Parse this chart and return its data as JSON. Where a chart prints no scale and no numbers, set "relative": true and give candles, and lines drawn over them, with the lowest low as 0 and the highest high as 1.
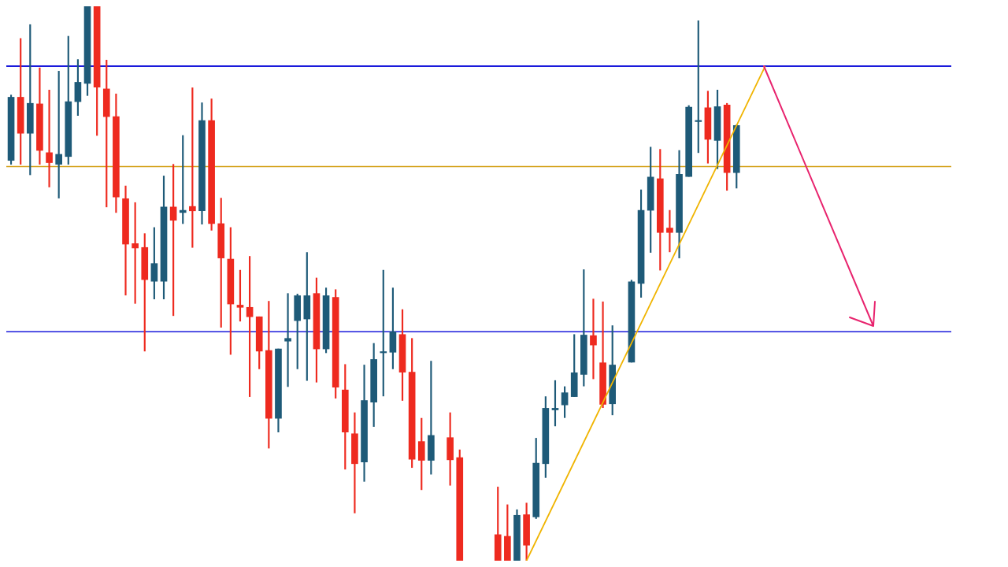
{
  "chart_data": {
    "type": "candlestick",
    "relative": true,
    "categories": [
      null,
      null,
      null,
      null,
      null,
      null,
      null,
      null,
      null,
      null,
      null,
      null,
      null,
      null,
      null,
      null,
      null,
      null,
      null,
      null,
      null,
      null,
      null,
      null,
      null,
      null,
      null,
      null,
      null,
      null,
      null,
      null,
      null,
      null,
      null,
      null,
      null,
      null,
      null,
      null,
      null,
      null,
      null,
      null,
      null,
      null,
      null,
      null,
      null,
      null,
      null,
      null,
      null,
      null,
      null,
      null,
      null,
      null,
      null,
      null,
      null,
      null,
      null,
      null,
      null,
      null,
      null,
      null,
      null,
      null,
      null,
      null,
      null,
      null,
      null,
      null,
      null,
      null,
      null,
      null,
      null,
      null,
      null,
      null,
      null,
      null,
      null,
      null,
      null,
      null,
      null,
      null,
      null,
      null,
      null,
      null,
      null,
      null,
      null
    ],
    "ohlc": [
      [
        0.722,
        0.84,
        0.715,
        0.836
      ],
      [
        0.836,
        0.942,
        0.715,
        0.771
      ],
      [
        0.771,
        0.967,
        0.696,
        0.825
      ],
      [
        0.824,
        0.889,
        0.715,
        0.74
      ],
      [
        0.736,
        0.849,
        0.674,
        0.718
      ],
      [
        0.715,
        0.883,
        0.654,
        0.733
      ],
      [
        0.729,
        0.946,
        0.715,
        0.828
      ],
      [
        0.828,
        0.904,
        0.803,
        0.863
      ],
      [
        0.861,
        1,
        0.839,
        1
      ],
      [
        1,
        1,
        0.767,
        0.854
      ],
      [
        0.851,
        0.903,
        0.638,
        0.801
      ],
      [
        0.801,
        0.842,
        0.628,
        0.656
      ],
      [
        0.653,
        0.676,
        0.479,
        0.571
      ],
      [
        0.572,
        0.646,
        0.464,
        0.564
      ],
      [
        0.565,
        0.59,
        0.378,
        0.507
      ],
      [
        0.504,
        0.601,
        0.472,
        0.536
      ],
      [
        0.504,
        0.694,
        0.472,
        0.638
      ],
      [
        0.638,
        0.715,
        0.442,
        0.614
      ],
      [
        0.628,
        0.767,
        0.608,
        0.632
      ],
      [
        0.639,
        0.853,
        0.565,
        0.631
      ],
      [
        0.631,
        0.826,
        0.607,
        0.794
      ],
      [
        0.794,
        0.833,
        0.596,
        0.608
      ],
      [
        0.608,
        0.654,
        0.421,
        0.546
      ],
      [
        0.544,
        0.601,
        0.372,
        0.463
      ],
      [
        0.461,
        0.524,
        0.432,
        0.457
      ],
      [
        0.457,
        0.549,
        0.296,
        0.44
      ],
      [
        0.44,
        0.44,
        0.346,
        0.378
      ],
      [
        0.379,
        0.468,
        0.203,
        0.257
      ],
      [
        0.257,
        0.382,
        0.232,
        0.382
      ],
      [
        0.396,
        0.482,
        0.314,
        0.401
      ],
      [
        0.433,
        0.481,
        0.346,
        0.478
      ],
      [
        0.436,
        0.556,
        0.325,
        0.478
      ],
      [
        0.482,
        0.51,
        0.322,
        0.382
      ],
      [
        0.382,
        0.492,
        0.375,
        0.478
      ],
      [
        0.475,
        0.489,
        0.293,
        0.313
      ],
      [
        0.308,
        0.354,
        0.165,
        0.232
      ],
      [
        0.229,
        0.267,
        0.086,
        0.175
      ],
      [
        0.178,
        0.353,
        0.143,
        0.289
      ],
      [
        0.286,
        0.392,
        0.242,
        0.363
      ],
      [
        0.375,
        0.524,
        0.297,
        0.376
      ],
      [
        0.376,
        0.492,
        0.346,
        0.413
      ],
      [
        0.408,
        0.453,
        0.289,
        0.34
      ],
      [
        0.34,
        0.401,
        0.168,
        0.183
      ],
      [
        0.215,
        0.257,
        0.128,
        0.181
      ],
      [
        0.181,
        0.36,
        0.156,
        0.226
      ],
      null,
      [
        0.222,
        0.267,
        0.136,
        0.182
      ],
      [
        0.186,
        0.2,
        0,
        0
      ],
      null,
      null,
      null,
      [
        0.047,
        0.133,
        0,
        0
      ],
      [
        0.044,
        0.101,
        0,
        0
      ],
      [
        0,
        0.092,
        0,
        0.082
      ],
      [
        0.083,
        0.104,
        0,
        0.028
      ],
      [
        0.079,
        0.221,
        0.076,
        0.176
      ],
      [
        0.175,
        0.296,
        0.15,
        0.275
      ],
      [
        0.272,
        0.325,
        0.243,
        0.275
      ],
      [
        0.281,
        0.314,
        0.258,
        0.303
      ],
      [
        0.296,
        0.408,
        0.296,
        0.339
      ],
      [
        0.336,
        0.525,
        0.315,
        0.407
      ],
      [
        0.406,
        0.472,
        0.328,
        0.389
      ],
      [
        0.357,
        0.467,
        0.276,
        0.282
      ],
      [
        0.283,
        0.424,
        0.263,
        0.353
      ],
      null,
      [
        0.358,
        0.506,
        0.358,
        0.503
      ],
      [
        0.5,
        0.669,
        0.475,
        0.632
      ],
      [
        0.632,
        0.746,
        0.556,
        0.692
      ],
      [
        0.689,
        0.742,
        0.524,
        0.592
      ],
      [
        0.6,
        0.632,
        0.557,
        0.592
      ],
      [
        0.592,
        0.74,
        0.546,
        0.697
      ],
      [
        0.693,
        0.821,
        0.693,
        0.818
      ],
      [
        0.792,
        0.974,
        0.736,
        0.794
      ],
      [
        0.817,
        0.847,
        0.717,
        0.76
      ],
      [
        0.758,
        0.849,
        0.707,
        0.819
      ],
      [
        0.822,
        0.825,
        0.668,
        0.7
      ],
      [
        0.7,
        0.786,
        0.672,
        0.785
      ],
      null,
      null,
      null,
      null,
      null,
      null,
      null,
      null,
      null,
      null,
      null,
      null,
      null,
      null,
      null,
      null,
      null,
      null,
      null,
      null,
      null,
      null
    ],
    "colors": [
      "#1e5a78",
      "#ee2a1f",
      "#1e5a78",
      "#ee2a1f",
      "#ee2a1f",
      "#1e5a78",
      "#1e5a78",
      "#1e5a78",
      "#1e5a78",
      "#ee2a1f",
      "#ee2a1f",
      "#ee2a1f",
      "#ee2a1f",
      "#ee2a1f",
      "#ee2a1f",
      "#1e5a78",
      "#1e5a78",
      "#ee2a1f",
      "#1e5a78",
      "#ee2a1f",
      "#1e5a78",
      "#ee2a1f",
      "#ee2a1f",
      "#ee2a1f",
      "#ee2a1f",
      "#ee2a1f",
      "#ee2a1f",
      "#ee2a1f",
      "#1e5a78",
      "#1e5a78",
      "#1e5a78",
      "#1e5a78",
      "#ee2a1f",
      "#1e5a78",
      "#ee2a1f",
      "#ee2a1f",
      "#ee2a1f",
      "#1e5a78",
      "#1e5a78",
      "#1e5a78",
      "#1e5a78",
      "#ee2a1f",
      "#ee2a1f",
      "#ee2a1f",
      "#1e5a78",
      null,
      "#ee2a1f",
      "#ee2a1f",
      null,
      null,
      null,
      "#ee2a1f",
      "#ee2a1f",
      "#1e5a78",
      "#ee2a1f",
      "#1e5a78",
      "#1e5a78",
      "#1e5a78",
      "#1e5a78",
      "#1e5a78",
      "#1e5a78",
      "#ee2a1f",
      "#ee2a1f",
      "#1e5a78",
      null,
      "#1e5a78",
      "#1e5a78",
      "#1e5a78",
      "#ee2a1f",
      "#ee2a1f",
      "#1e5a78",
      "#1e5a78",
      "#1e5a78",
      "#ee2a1f",
      "#1e5a78",
      "#ee2a1f",
      "#1e5a78",
      null,
      null,
      null,
      null,
      null,
      null,
      null,
      null,
      null,
      null,
      null,
      null,
      null,
      null,
      null,
      null,
      null,
      null,
      null,
      null,
      null,
      null
    ],
    "series": [
      {
        "type": "line",
        "color": "#f0b400",
        "values": [
          null,
          null,
          null,
          null,
          null,
          null,
          null,
          null,
          null,
          null,
          null,
          null,
          null,
          null,
          null,
          null,
          null,
          null,
          null,
          null,
          null,
          null,
          null,
          null,
          null,
          null,
          null,
          null,
          null,
          null,
          null,
          null,
          null,
          null,
          null,
          null,
          null,
          null,
          null,
          null,
          null,
          null,
          null,
          null,
          null,
          null,
          null,
          null,
          null,
          null,
          null,
          null,
          null,
          null,
          0,
          null,
          null,
          null,
          null,
          null,
          null,
          null,
          null,
          null,
          null,
          null,
          null,
          null,
          null,
          null,
          null,
          null,
          null,
          null,
          null,
          null,
          null,
          null,
          null,
          0.892,
          null,
          null,
          null,
          null,
          null,
          null,
          null,
          null,
          null,
          null,
          null,
          null,
          null,
          null,
          null,
          null,
          null,
          null,
          null
        ]
      }
    ],
    "ref_lines": [
      {
        "axis": "y",
        "value": 0.892,
        "color": "#1a1adb"
      },
      {
        "axis": "y",
        "value": 0.711,
        "color": "#d4a017"
      },
      {
        "axis": "y",
        "value": 0.413,
        "color": "#1a1adb"
      }
    ]
  }
}
